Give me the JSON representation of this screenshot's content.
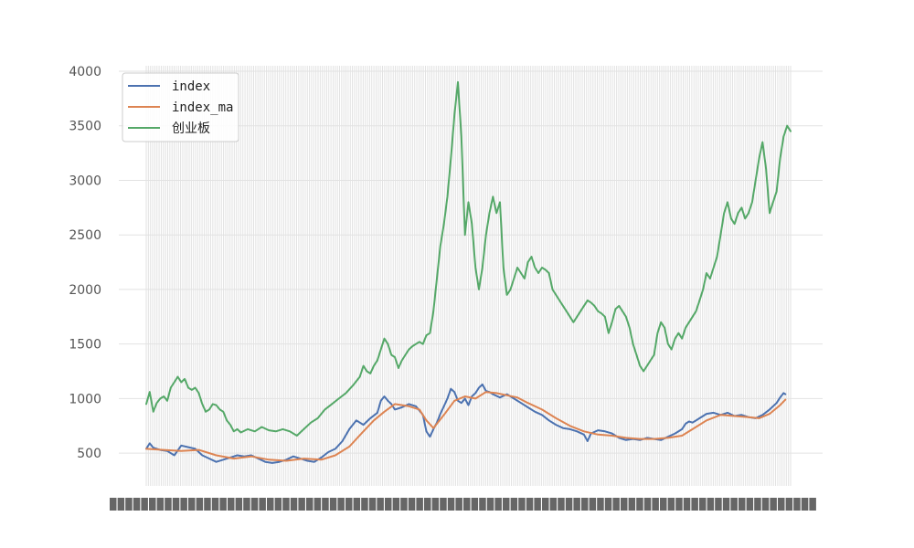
{
  "chart_data": {
    "type": "line",
    "title": "",
    "xlabel": "",
    "ylabel": "",
    "ylim": [
      200,
      4050
    ],
    "yticks": [
      500,
      1000,
      1500,
      2000,
      2500,
      3000,
      3500,
      4000
    ],
    "n_points": 300,
    "x_tick_labels_note": "dense overlapping date labels, illegible",
    "grid": true,
    "legend_position": "top-left",
    "colors": {
      "index": "#4c72b0",
      "index_ma": "#dd8452",
      "cyb": "#55a868",
      "grid": "#e2e2e2",
      "axes_bg": "#ffffff"
    },
    "series": [
      {
        "name": "index",
        "color": "#4c72b0",
        "keypoints": [
          [
            0,
            540
          ],
          [
            2,
            590
          ],
          [
            4,
            550
          ],
          [
            8,
            530
          ],
          [
            12,
            520
          ],
          [
            16,
            480
          ],
          [
            20,
            570
          ],
          [
            24,
            555
          ],
          [
            28,
            540
          ],
          [
            32,
            480
          ],
          [
            36,
            450
          ],
          [
            40,
            420
          ],
          [
            44,
            440
          ],
          [
            48,
            460
          ],
          [
            52,
            480
          ],
          [
            56,
            470
          ],
          [
            60,
            480
          ],
          [
            64,
            450
          ],
          [
            68,
            420
          ],
          [
            72,
            410
          ],
          [
            76,
            420
          ],
          [
            80,
            440
          ],
          [
            84,
            470
          ],
          [
            88,
            450
          ],
          [
            92,
            430
          ],
          [
            96,
            420
          ],
          [
            100,
            460
          ],
          [
            104,
            510
          ],
          [
            108,
            540
          ],
          [
            112,
            610
          ],
          [
            116,
            720
          ],
          [
            120,
            800
          ],
          [
            124,
            760
          ],
          [
            128,
            820
          ],
          [
            132,
            870
          ],
          [
            134,
            980
          ],
          [
            136,
            1020
          ],
          [
            138,
            980
          ],
          [
            140,
            950
          ],
          [
            142,
            900
          ],
          [
            146,
            920
          ],
          [
            150,
            950
          ],
          [
            154,
            930
          ],
          [
            158,
            850
          ],
          [
            160,
            700
          ],
          [
            162,
            650
          ],
          [
            164,
            720
          ],
          [
            166,
            780
          ],
          [
            168,
            860
          ],
          [
            170,
            930
          ],
          [
            172,
            1000
          ],
          [
            174,
            1090
          ],
          [
            176,
            1060
          ],
          [
            178,
            980
          ],
          [
            180,
            960
          ],
          [
            182,
            1000
          ],
          [
            184,
            940
          ],
          [
            186,
            1020
          ],
          [
            188,
            1050
          ],
          [
            190,
            1100
          ],
          [
            192,
            1130
          ],
          [
            194,
            1070
          ],
          [
            196,
            1060
          ],
          [
            198,
            1040
          ],
          [
            202,
            1010
          ],
          [
            206,
            1040
          ],
          [
            210,
            1000
          ],
          [
            214,
            960
          ],
          [
            218,
            920
          ],
          [
            222,
            880
          ],
          [
            226,
            850
          ],
          [
            230,
            800
          ],
          [
            234,
            760
          ],
          [
            238,
            730
          ],
          [
            242,
            720
          ],
          [
            246,
            700
          ],
          [
            250,
            670
          ],
          [
            252,
            610
          ],
          [
            254,
            680
          ],
          [
            258,
            710
          ],
          [
            262,
            700
          ],
          [
            266,
            680
          ],
          [
            270,
            640
          ],
          [
            274,
            620
          ],
          [
            278,
            630
          ],
          [
            282,
            620
          ],
          [
            286,
            640
          ],
          [
            290,
            630
          ],
          [
            294,
            620
          ],
          [
            298,
            650
          ],
          [
            302,
            680
          ],
          [
            306,
            720
          ],
          [
            308,
            770
          ],
          [
            310,
            790
          ],
          [
            312,
            780
          ],
          [
            316,
            820
          ],
          [
            320,
            860
          ],
          [
            324,
            870
          ],
          [
            328,
            850
          ],
          [
            332,
            870
          ],
          [
            336,
            840
          ],
          [
            340,
            850
          ],
          [
            344,
            830
          ],
          [
            348,
            820
          ],
          [
            352,
            850
          ],
          [
            356,
            900
          ],
          [
            360,
            960
          ],
          [
            362,
            1010
          ],
          [
            364,
            1050
          ],
          [
            365,
            1040
          ]
        ]
      },
      {
        "name": "index_ma",
        "color": "#dd8452",
        "keypoints": [
          [
            0,
            540
          ],
          [
            10,
            530
          ],
          [
            20,
            520
          ],
          [
            30,
            530
          ],
          [
            40,
            480
          ],
          [
            50,
            450
          ],
          [
            60,
            470
          ],
          [
            70,
            440
          ],
          [
            80,
            430
          ],
          [
            90,
            450
          ],
          [
            100,
            440
          ],
          [
            108,
            480
          ],
          [
            116,
            560
          ],
          [
            124,
            700
          ],
          [
            130,
            800
          ],
          [
            136,
            880
          ],
          [
            142,
            950
          ],
          [
            150,
            930
          ],
          [
            156,
            900
          ],
          [
            160,
            800
          ],
          [
            164,
            730
          ],
          [
            170,
            850
          ],
          [
            176,
            980
          ],
          [
            182,
            1020
          ],
          [
            188,
            1000
          ],
          [
            194,
            1060
          ],
          [
            200,
            1050
          ],
          [
            206,
            1030
          ],
          [
            212,
            1010
          ],
          [
            218,
            960
          ],
          [
            226,
            900
          ],
          [
            234,
            820
          ],
          [
            242,
            750
          ],
          [
            250,
            700
          ],
          [
            258,
            670
          ],
          [
            266,
            660
          ],
          [
            274,
            640
          ],
          [
            282,
            630
          ],
          [
            290,
            630
          ],
          [
            298,
            640
          ],
          [
            306,
            660
          ],
          [
            312,
            720
          ],
          [
            320,
            800
          ],
          [
            328,
            850
          ],
          [
            336,
            840
          ],
          [
            344,
            830
          ],
          [
            350,
            820
          ],
          [
            356,
            860
          ],
          [
            362,
            940
          ],
          [
            365,
            990
          ]
        ]
      },
      {
        "name": "创业板",
        "color": "#55a868",
        "keypoints": [
          [
            0,
            950
          ],
          [
            2,
            1060
          ],
          [
            4,
            880
          ],
          [
            6,
            960
          ],
          [
            8,
            1000
          ],
          [
            10,
            1020
          ],
          [
            12,
            980
          ],
          [
            14,
            1100
          ],
          [
            16,
            1150
          ],
          [
            18,
            1200
          ],
          [
            20,
            1150
          ],
          [
            22,
            1180
          ],
          [
            24,
            1100
          ],
          [
            26,
            1080
          ],
          [
            28,
            1100
          ],
          [
            30,
            1050
          ],
          [
            32,
            950
          ],
          [
            34,
            880
          ],
          [
            36,
            900
          ],
          [
            38,
            950
          ],
          [
            40,
            940
          ],
          [
            42,
            900
          ],
          [
            44,
            880
          ],
          [
            46,
            800
          ],
          [
            48,
            760
          ],
          [
            50,
            700
          ],
          [
            52,
            720
          ],
          [
            54,
            690
          ],
          [
            58,
            720
          ],
          [
            62,
            700
          ],
          [
            66,
            740
          ],
          [
            70,
            710
          ],
          [
            74,
            700
          ],
          [
            78,
            720
          ],
          [
            82,
            700
          ],
          [
            86,
            660
          ],
          [
            90,
            720
          ],
          [
            94,
            780
          ],
          [
            98,
            820
          ],
          [
            102,
            900
          ],
          [
            106,
            950
          ],
          [
            110,
            1000
          ],
          [
            114,
            1050
          ],
          [
            118,
            1120
          ],
          [
            122,
            1200
          ],
          [
            124,
            1300
          ],
          [
            126,
            1250
          ],
          [
            128,
            1230
          ],
          [
            130,
            1300
          ],
          [
            132,
            1350
          ],
          [
            134,
            1450
          ],
          [
            136,
            1550
          ],
          [
            138,
            1500
          ],
          [
            140,
            1400
          ],
          [
            142,
            1380
          ],
          [
            144,
            1280
          ],
          [
            146,
            1350
          ],
          [
            148,
            1400
          ],
          [
            150,
            1450
          ],
          [
            152,
            1480
          ],
          [
            154,
            1500
          ],
          [
            156,
            1520
          ],
          [
            158,
            1500
          ],
          [
            160,
            1580
          ],
          [
            162,
            1600
          ],
          [
            164,
            1800
          ],
          [
            166,
            2100
          ],
          [
            168,
            2400
          ],
          [
            170,
            2600
          ],
          [
            172,
            2850
          ],
          [
            174,
            3200
          ],
          [
            176,
            3600
          ],
          [
            178,
            3900
          ],
          [
            180,
            3400
          ],
          [
            182,
            2500
          ],
          [
            184,
            2800
          ],
          [
            186,
            2600
          ],
          [
            188,
            2200
          ],
          [
            190,
            2000
          ],
          [
            192,
            2200
          ],
          [
            194,
            2500
          ],
          [
            196,
            2700
          ],
          [
            198,
            2850
          ],
          [
            200,
            2700
          ],
          [
            202,
            2800
          ],
          [
            204,
            2200
          ],
          [
            206,
            1950
          ],
          [
            208,
            2000
          ],
          [
            210,
            2100
          ],
          [
            212,
            2200
          ],
          [
            214,
            2150
          ],
          [
            216,
            2100
          ],
          [
            218,
            2250
          ],
          [
            220,
            2300
          ],
          [
            222,
            2200
          ],
          [
            224,
            2150
          ],
          [
            226,
            2200
          ],
          [
            228,
            2180
          ],
          [
            230,
            2150
          ],
          [
            232,
            2000
          ],
          [
            234,
            1950
          ],
          [
            236,
            1900
          ],
          [
            238,
            1850
          ],
          [
            240,
            1800
          ],
          [
            242,
            1750
          ],
          [
            244,
            1700
          ],
          [
            246,
            1750
          ],
          [
            248,
            1800
          ],
          [
            250,
            1850
          ],
          [
            252,
            1900
          ],
          [
            254,
            1880
          ],
          [
            256,
            1850
          ],
          [
            258,
            1800
          ],
          [
            260,
            1780
          ],
          [
            262,
            1750
          ],
          [
            264,
            1600
          ],
          [
            266,
            1700
          ],
          [
            268,
            1820
          ],
          [
            270,
            1850
          ],
          [
            272,
            1800
          ],
          [
            274,
            1750
          ],
          [
            276,
            1650
          ],
          [
            278,
            1500
          ],
          [
            280,
            1400
          ],
          [
            282,
            1300
          ],
          [
            284,
            1250
          ],
          [
            286,
            1300
          ],
          [
            288,
            1350
          ],
          [
            290,
            1400
          ],
          [
            292,
            1600
          ],
          [
            294,
            1700
          ],
          [
            296,
            1650
          ],
          [
            298,
            1500
          ],
          [
            300,
            1450
          ],
          [
            302,
            1550
          ],
          [
            304,
            1600
          ],
          [
            306,
            1550
          ],
          [
            308,
            1650
          ],
          [
            310,
            1700
          ],
          [
            312,
            1750
          ],
          [
            314,
            1800
          ],
          [
            316,
            1900
          ],
          [
            318,
            2000
          ],
          [
            320,
            2150
          ],
          [
            322,
            2100
          ],
          [
            324,
            2200
          ],
          [
            326,
            2300
          ],
          [
            328,
            2500
          ],
          [
            330,
            2700
          ],
          [
            332,
            2800
          ],
          [
            334,
            2650
          ],
          [
            336,
            2600
          ],
          [
            338,
            2700
          ],
          [
            340,
            2750
          ],
          [
            342,
            2650
          ],
          [
            344,
            2700
          ],
          [
            346,
            2800
          ],
          [
            348,
            3000
          ],
          [
            350,
            3200
          ],
          [
            352,
            3350
          ],
          [
            354,
            3100
          ],
          [
            356,
            2700
          ],
          [
            358,
            2800
          ],
          [
            360,
            2900
          ],
          [
            362,
            3200
          ],
          [
            364,
            3400
          ],
          [
            366,
            3500
          ],
          [
            368,
            3450
          ]
        ]
      }
    ]
  }
}
